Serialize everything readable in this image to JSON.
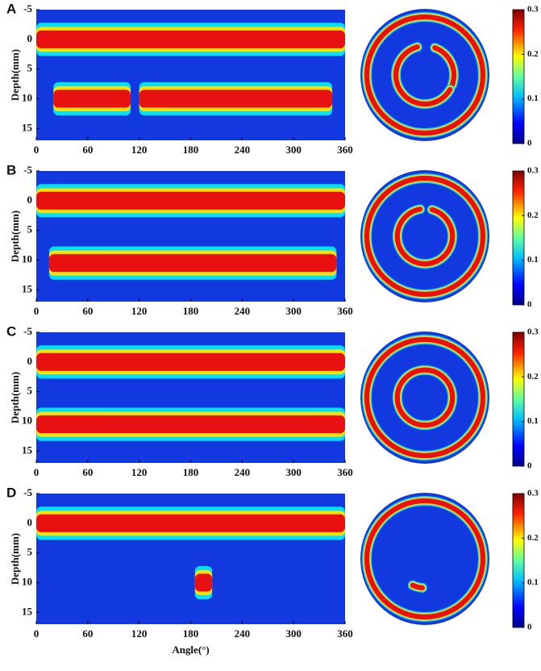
{
  "chart_data": [
    {
      "type": "heatmap",
      "label": "A",
      "ylabel": "Depth(mm)",
      "xlim": [
        0,
        360
      ],
      "xticks": [
        0,
        60,
        120,
        180,
        240,
        300,
        360
      ],
      "ylim": [
        -5,
        17
      ],
      "yticks": [
        -5,
        0,
        5,
        10,
        15
      ],
      "clim": [
        0,
        0.3
      ],
      "cticks": [
        0,
        0.1,
        0.2,
        0.3
      ],
      "bands": [
        {
          "depth": 0,
          "from": 0,
          "to": 360
        },
        {
          "depth": 10,
          "from": 20,
          "to": 110
        },
        {
          "depth": 10,
          "from": 120,
          "to": 345
        }
      ]
    },
    {
      "type": "heatmap",
      "label": "B",
      "ylabel": "Depth(mm)",
      "xlim": [
        0,
        360
      ],
      "xticks": [
        0,
        60,
        120,
        180,
        240,
        300,
        360
      ],
      "ylim": [
        -5,
        17
      ],
      "yticks": [
        -5,
        0,
        5,
        10,
        15
      ],
      "clim": [
        0,
        0.3
      ],
      "cticks": [
        0,
        0.1,
        0.2,
        0.3
      ],
      "bands": [
        {
          "depth": 0,
          "from": 0,
          "to": 360
        },
        {
          "depth": 10.5,
          "from": 15,
          "to": 350
        }
      ]
    },
    {
      "type": "heatmap",
      "label": "C",
      "ylabel": "Depth(mm)",
      "xlim": [
        0,
        360
      ],
      "xticks": [
        0,
        60,
        120,
        180,
        240,
        300,
        360
      ],
      "ylim": [
        -5,
        17
      ],
      "yticks": [
        -5,
        0,
        5,
        10,
        15
      ],
      "clim": [
        0,
        0.3
      ],
      "cticks": [
        0,
        0.1,
        0.2,
        0.3
      ],
      "bands": [
        {
          "depth": 0,
          "from": 0,
          "to": 360
        },
        {
          "depth": 10.5,
          "from": 0,
          "to": 360
        }
      ]
    },
    {
      "type": "heatmap",
      "label": "D",
      "ylabel": "Depth(mm)",
      "xlabel": "Angle(°)",
      "xlim": [
        0,
        360
      ],
      "xticks": [
        0,
        60,
        120,
        180,
        240,
        300,
        360
      ],
      "ylim": [
        -5,
        17
      ],
      "yticks": [
        -5,
        0,
        5,
        10,
        15
      ],
      "clim": [
        0,
        0.3
      ],
      "cticks": [
        0,
        0.1,
        0.2,
        0.3
      ],
      "bands": [
        {
          "depth": 0,
          "from": 0,
          "to": 360
        },
        {
          "depth": 10,
          "from": 185,
          "to": 205
        }
      ]
    }
  ]
}
